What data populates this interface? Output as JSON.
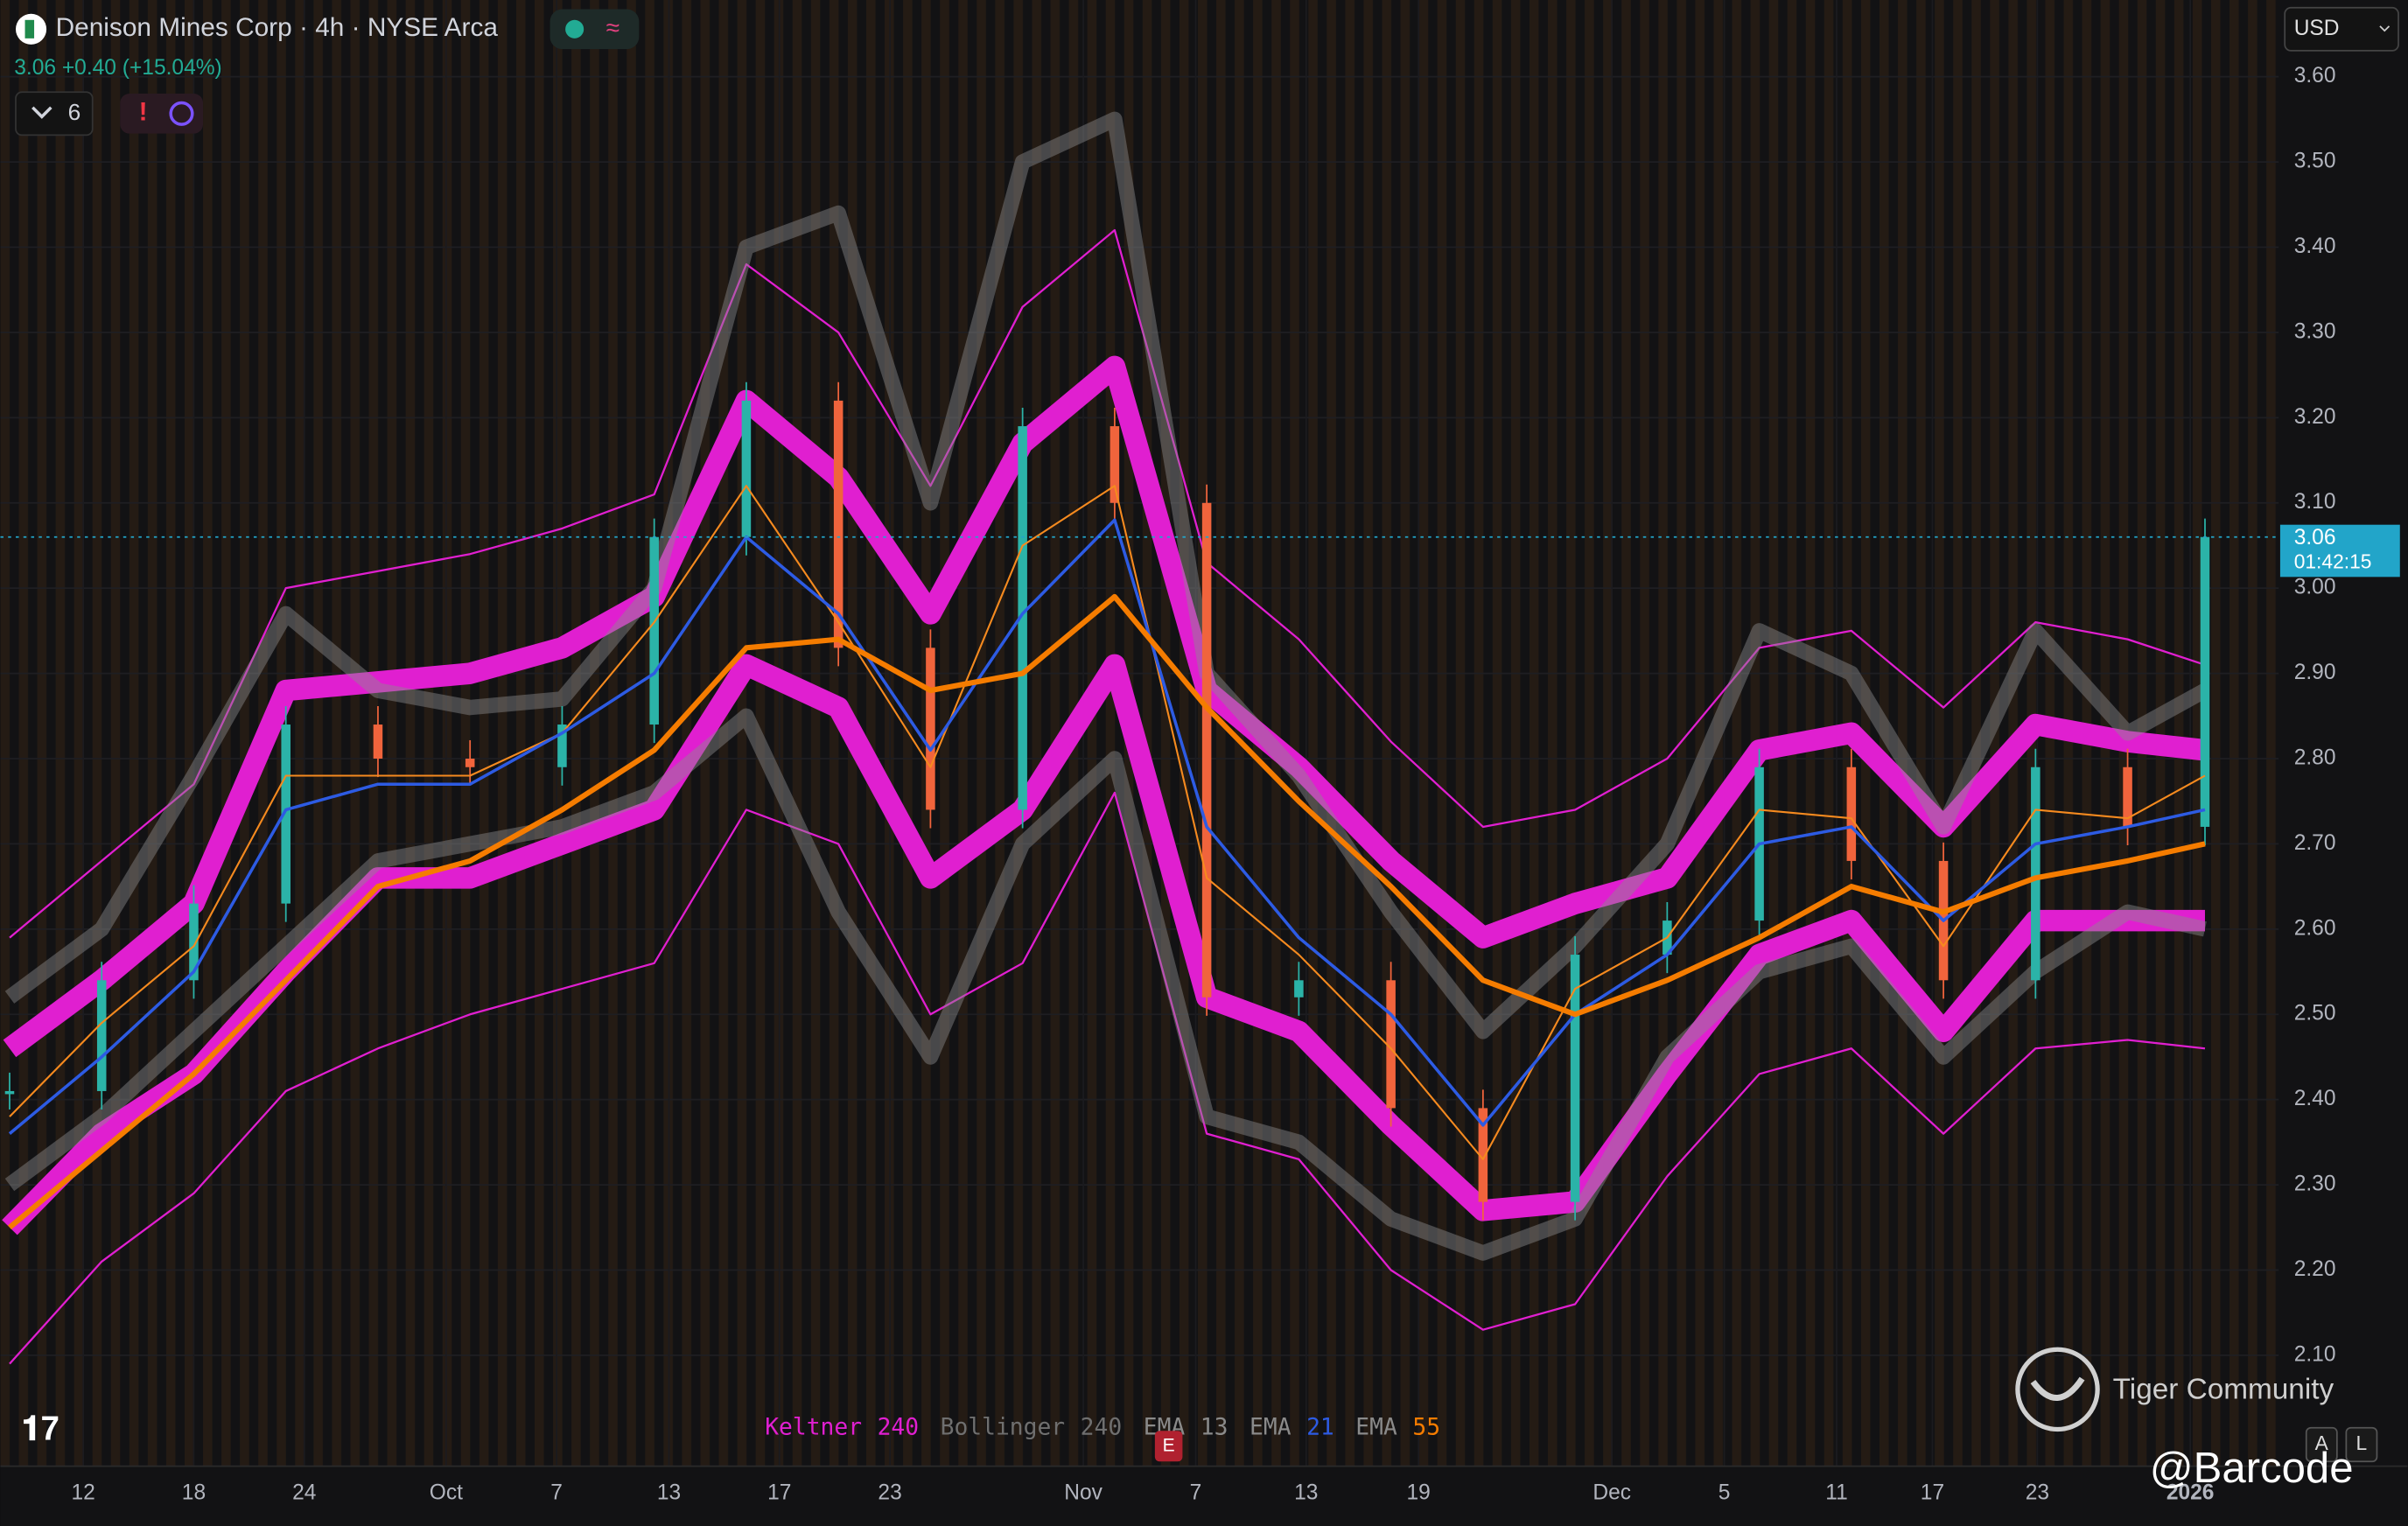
{
  "chart_data": {
    "type": "candlestick",
    "title": "Denison Mines Corp · 4h · NYSE Arca",
    "last_price": 3.06,
    "change": "+0.40",
    "change_percent": "(+15.04%)",
    "indicator_count": "6",
    "currency": "USD",
    "countdown": "01:42:15",
    "watermark": "Tiger Community",
    "signature": "@Barcode",
    "earnings_marker": "E",
    "buttons": [
      "A",
      "L"
    ],
    "x": [
      -4,
      1,
      6,
      11,
      16,
      21,
      26,
      31,
      36,
      41,
      46,
      51,
      56,
      61,
      66,
      71,
      76,
      81,
      86,
      91,
      96,
      101,
      106,
      111,
      115.2
    ],
    "xlim": [
      -4.5,
      119.2
    ],
    "xticks": [
      {
        "value": 0,
        "label": "12"
      },
      {
        "value": 6,
        "label": "18"
      },
      {
        "value": 12,
        "label": "24"
      },
      {
        "value": 19.7,
        "label": "Oct"
      },
      {
        "value": 25.7,
        "label": "7"
      },
      {
        "value": 31.8,
        "label": "13"
      },
      {
        "value": 37.8,
        "label": "17"
      },
      {
        "value": 43.8,
        "label": "23"
      },
      {
        "value": 54.3,
        "label": "Nov"
      },
      {
        "value": 60.4,
        "label": "7"
      },
      {
        "value": 66.4,
        "label": "13"
      },
      {
        "value": 72.5,
        "label": "19"
      },
      {
        "value": 83,
        "label": "Dec"
      },
      {
        "value": 89.1,
        "label": "5"
      },
      {
        "value": 95.2,
        "label": "11"
      },
      {
        "value": 100.4,
        "label": "17"
      },
      {
        "value": 106.1,
        "label": "23"
      },
      {
        "value": 114.4,
        "label": "2026"
      }
    ],
    "ylim": [
      1.97,
      3.69
    ],
    "yticks": [
      {
        "value": 2.1,
        "label": "2.10"
      },
      {
        "value": 2.2,
        "label": "2.20"
      },
      {
        "value": 2.3,
        "label": "2.30"
      },
      {
        "value": 2.4,
        "label": "2.40"
      },
      {
        "value": 2.5,
        "label": "2.50"
      },
      {
        "value": 2.6,
        "label": "2.60"
      },
      {
        "value": 2.7,
        "label": "2.70"
      },
      {
        "value": 2.8,
        "label": "2.80"
      },
      {
        "value": 2.9,
        "label": "2.90"
      },
      {
        "value": 3.0,
        "label": "3.00"
      },
      {
        "value": 3.1,
        "label": "3.10"
      },
      {
        "value": 3.2,
        "label": "3.20"
      },
      {
        "value": 3.3,
        "label": "3.30"
      },
      {
        "value": 3.4,
        "label": "3.40"
      },
      {
        "value": 3.5,
        "label": "3.50"
      },
      {
        "value": 3.6,
        "label": "3.60"
      }
    ],
    "price": {
      "up_color": "#2bb3a8",
      "down_color": "#f0643c",
      "values": [
        2.41,
        2.54,
        2.63,
        2.84,
        2.8,
        2.79,
        2.84,
        3.06,
        3.22,
        2.93,
        2.74,
        3.19,
        3.1,
        2.52,
        2.54,
        2.39,
        2.28,
        2.57,
        2.61,
        2.79,
        2.68,
        2.54,
        2.79,
        2.72,
        3.06
      ]
    },
    "series": [
      {
        "name": "Keltner",
        "length": 240,
        "color": "#e01fd0",
        "legend_colors": [
          "#e01fd0",
          "#e01fd0"
        ],
        "upper": [
          2.46,
          2.54,
          2.63,
          2.88,
          2.89,
          2.9,
          2.93,
          2.99,
          3.22,
          3.13,
          2.97,
          3.17,
          3.26,
          2.88,
          2.79,
          2.68,
          2.59,
          2.63,
          2.66,
          2.81,
          2.83,
          2.72,
          2.84,
          2.82,
          2.81
        ],
        "lower": [
          2.25,
          2.36,
          2.43,
          2.55,
          2.66,
          2.66,
          2.7,
          2.74,
          2.91,
          2.86,
          2.66,
          2.74,
          2.91,
          2.52,
          2.48,
          2.37,
          2.27,
          2.28,
          2.43,
          2.57,
          2.61,
          2.48,
          2.61,
          2.61,
          2.61
        ],
        "outer_upper": [
          2.59,
          2.68,
          2.77,
          3.0,
          3.02,
          3.04,
          3.07,
          3.11,
          3.38,
          3.3,
          3.12,
          3.33,
          3.42,
          3.03,
          2.94,
          2.82,
          2.72,
          2.74,
          2.8,
          2.93,
          2.95,
          2.86,
          2.96,
          2.94,
          2.91
        ],
        "outer_lower": [
          2.09,
          2.21,
          2.29,
          2.41,
          2.46,
          2.5,
          2.53,
          2.56,
          2.74,
          2.7,
          2.5,
          2.56,
          2.76,
          2.36,
          2.33,
          2.2,
          2.13,
          2.16,
          2.31,
          2.43,
          2.46,
          2.36,
          2.46,
          2.47,
          2.46
        ]
      },
      {
        "name": "Bollinger",
        "length": 240,
        "color": "#8c8c8c",
        "legend_colors": [
          "#6f6f6f",
          "#6f6f6f"
        ],
        "upper": [
          2.52,
          2.6,
          2.78,
          2.97,
          2.88,
          2.86,
          2.87,
          3.0,
          3.4,
          3.44,
          3.1,
          3.5,
          3.55,
          2.9,
          2.78,
          2.62,
          2.48,
          2.58,
          2.7,
          2.95,
          2.9,
          2.72,
          2.95,
          2.83,
          2.88
        ],
        "lower": [
          2.3,
          2.38,
          2.48,
          2.58,
          2.68,
          2.7,
          2.72,
          2.76,
          2.85,
          2.62,
          2.45,
          2.7,
          2.8,
          2.38,
          2.35,
          2.26,
          2.22,
          2.26,
          2.45,
          2.55,
          2.58,
          2.45,
          2.55,
          2.62,
          2.6
        ]
      },
      {
        "name": "EMA",
        "length": 13,
        "color": "#f58a1f",
        "legend_colors": [
          "#8a8a8a",
          "#8a8a8a"
        ],
        "width": 1.2,
        "values": [
          2.38,
          2.49,
          2.58,
          2.78,
          2.78,
          2.78,
          2.83,
          2.96,
          3.12,
          2.96,
          2.79,
          3.05,
          3.12,
          2.66,
          2.57,
          2.46,
          2.33,
          2.53,
          2.59,
          2.74,
          2.73,
          2.58,
          2.74,
          2.73,
          2.78
        ]
      },
      {
        "name": "EMA",
        "length": 21,
        "color": "#2d5be3",
        "legend_colors": [
          "#8a8a8a",
          "#2d5be3"
        ],
        "width": 2,
        "values": [
          2.36,
          2.45,
          2.55,
          2.74,
          2.77,
          2.77,
          2.83,
          2.9,
          3.06,
          2.97,
          2.81,
          2.97,
          3.08,
          2.72,
          2.59,
          2.5,
          2.37,
          2.5,
          2.57,
          2.7,
          2.72,
          2.61,
          2.7,
          2.72,
          2.74
        ]
      },
      {
        "name": "EMA",
        "length": 55,
        "color": "#f57c00",
        "legend_colors": [
          "#8a8a8a",
          "#f57c00"
        ],
        "width": 3.5,
        "values": [
          2.25,
          2.34,
          2.43,
          2.54,
          2.65,
          2.68,
          2.74,
          2.81,
          2.93,
          2.94,
          2.88,
          2.9,
          2.99,
          2.86,
          2.75,
          2.65,
          2.54,
          2.5,
          2.54,
          2.59,
          2.65,
          2.62,
          2.66,
          2.68,
          2.7
        ]
      }
    ]
  }
}
